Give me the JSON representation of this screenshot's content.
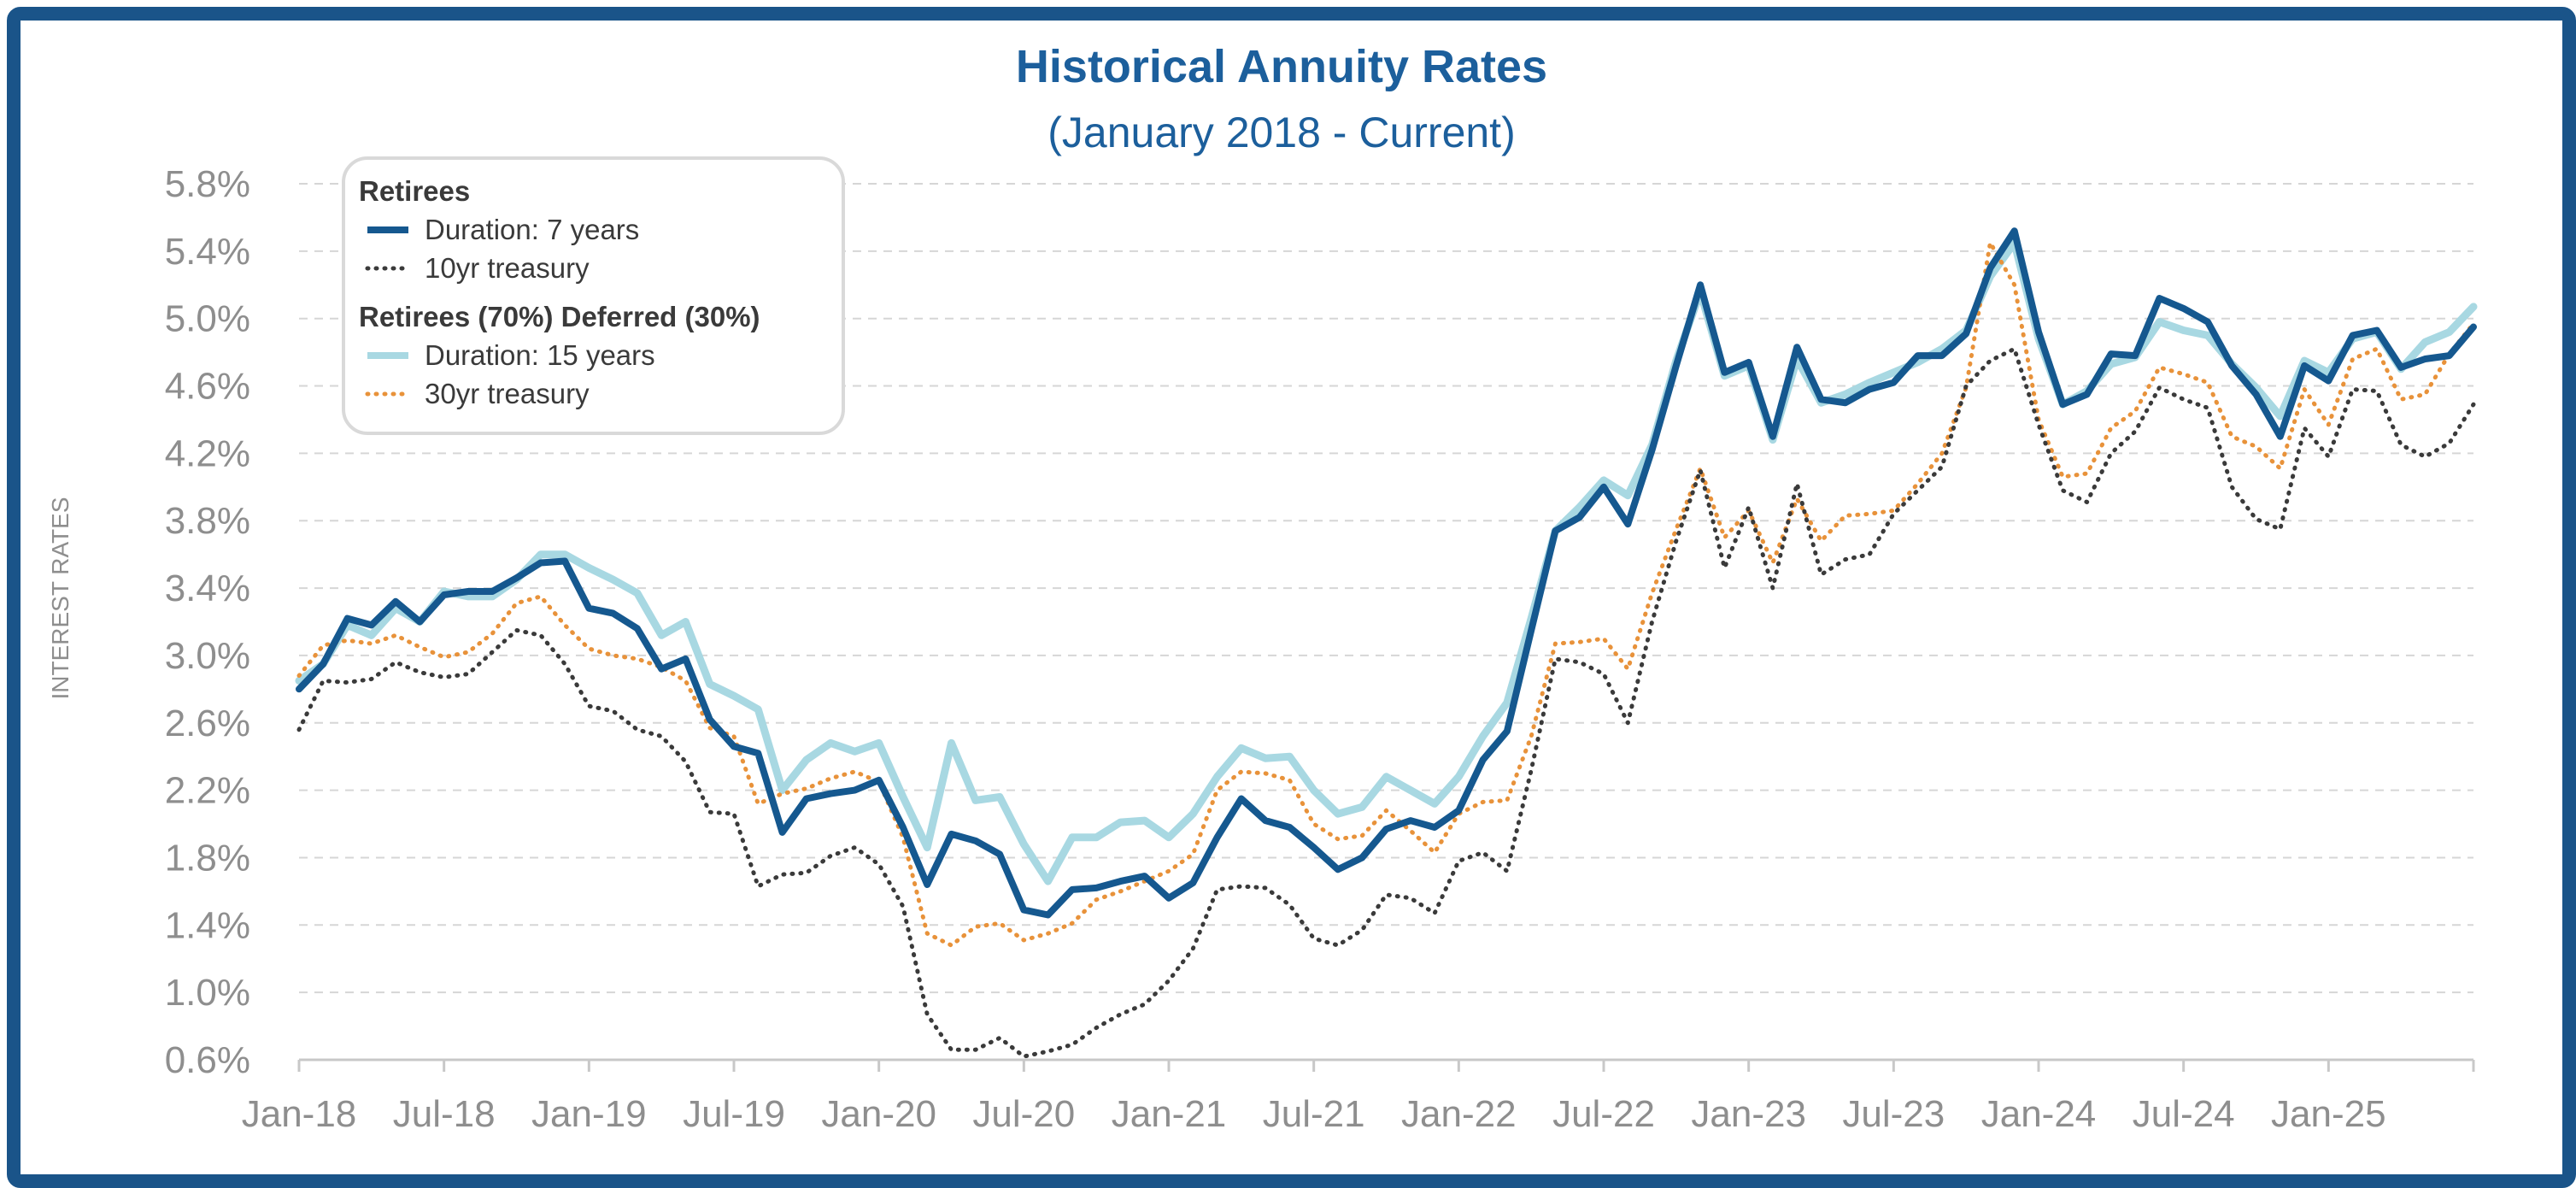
{
  "chart_data": {
    "type": "line",
    "title": "Historical Annuity Rates",
    "subtitle": "(January 2018 - Current)",
    "ylabel": "INTEREST RATES",
    "xlabel": "",
    "ylim": [
      0.6,
      5.8
    ],
    "grid": "horizontal dashed",
    "legend_position": "top-left",
    "x_tick_labels": [
      "Jan-18",
      "Jul-18",
      "Jan-19",
      "Jul-19",
      "Jan-20",
      "Jul-20",
      "Jan-21",
      "Jul-21",
      "Jan-22",
      "Jul-22",
      "Jan-23",
      "Jul-23",
      "Jan-24",
      "Jul-24",
      "Jan-25"
    ],
    "y_tick_labels": [
      "5.8%",
      "5.4%",
      "5.0%",
      "4.6%",
      "4.2%",
      "3.8%",
      "3.4%",
      "3.0%",
      "2.6%",
      "2.2%",
      "1.8%",
      "1.4%",
      "1.0%",
      "0.6%"
    ],
    "legend_groups": [
      {
        "heading": "Retirees",
        "entries": [
          0,
          1
        ]
      },
      {
        "heading": "Retirees (70%) Deferred (30%)",
        "entries": [
          2,
          3
        ]
      }
    ],
    "series": [
      {
        "name": "Duration: 7 years",
        "color": "#15588f",
        "style": "solid",
        "values": [
          2.8,
          2.95,
          3.22,
          3.18,
          3.32,
          3.2,
          3.36,
          3.38,
          3.38,
          3.46,
          3.55,
          3.56,
          3.28,
          3.25,
          3.16,
          2.92,
          2.98,
          2.62,
          2.46,
          2.42,
          1.95,
          2.15,
          2.18,
          2.2,
          2.26,
          1.98,
          1.64,
          1.94,
          1.9,
          1.82,
          1.49,
          1.46,
          1.61,
          1.62,
          1.66,
          1.69,
          1.56,
          1.65,
          1.92,
          2.15,
          2.02,
          1.98,
          1.86,
          1.73,
          1.8,
          1.97,
          2.02,
          1.98,
          2.08,
          2.38,
          2.55,
          3.15,
          3.74,
          3.82,
          4.0,
          3.78,
          4.22,
          4.72,
          5.2,
          4.68,
          4.74,
          4.3,
          4.83,
          4.52,
          4.5,
          4.58,
          4.62,
          4.78,
          4.78,
          4.91,
          5.3,
          5.52,
          4.92,
          4.49,
          4.55,
          4.79,
          4.78,
          5.12,
          5.06,
          4.98,
          4.72,
          4.55,
          4.3,
          4.72,
          4.63,
          4.9,
          4.93,
          4.71,
          4.76,
          4.78,
          4.95
        ]
      },
      {
        "name": "10yr treasury",
        "color": "#3a3a3a",
        "style": "dotted",
        "values": [
          2.56,
          2.85,
          2.84,
          2.86,
          2.96,
          2.9,
          2.87,
          2.89,
          3.02,
          3.15,
          3.12,
          2.95,
          2.7,
          2.67,
          2.56,
          2.52,
          2.37,
          2.07,
          2.06,
          1.63,
          1.7,
          1.71,
          1.81,
          1.86,
          1.76,
          1.51,
          0.87,
          0.66,
          0.66,
          0.73,
          0.62,
          0.65,
          0.69,
          0.79,
          0.87,
          0.93,
          1.07,
          1.26,
          1.61,
          1.63,
          1.62,
          1.52,
          1.32,
          1.28,
          1.37,
          1.58,
          1.56,
          1.47,
          1.78,
          1.83,
          1.72,
          2.32,
          2.98,
          2.96,
          2.89,
          2.6,
          3.2,
          3.68,
          4.1,
          3.52,
          3.88,
          3.4,
          4.02,
          3.48,
          3.57,
          3.6,
          3.84,
          3.98,
          4.12,
          4.6,
          4.75,
          4.82,
          4.37,
          3.98,
          3.91,
          4.2,
          4.33,
          4.59,
          4.52,
          4.47,
          4.0,
          3.81,
          3.75,
          4.35,
          4.18,
          4.58,
          4.57,
          4.25,
          4.18,
          4.26,
          4.49
        ]
      },
      {
        "name": "Duration: 15 years",
        "color": "#a8d8e2",
        "style": "solid",
        "values": [
          2.85,
          2.95,
          3.18,
          3.12,
          3.28,
          3.2,
          3.38,
          3.35,
          3.35,
          3.45,
          3.6,
          3.6,
          3.52,
          3.45,
          3.37,
          3.12,
          3.2,
          2.83,
          2.76,
          2.68,
          2.2,
          2.38,
          2.48,
          2.43,
          2.48,
          2.16,
          1.86,
          2.48,
          2.14,
          2.16,
          1.88,
          1.66,
          1.92,
          1.92,
          2.01,
          2.02,
          1.92,
          2.06,
          2.28,
          2.45,
          2.39,
          2.4,
          2.2,
          2.06,
          2.1,
          2.28,
          2.2,
          2.12,
          2.28,
          2.52,
          2.72,
          3.22,
          3.74,
          3.88,
          4.04,
          3.95,
          4.25,
          4.75,
          5.16,
          4.66,
          4.72,
          4.28,
          4.76,
          4.5,
          4.55,
          4.62,
          4.68,
          4.74,
          4.82,
          4.93,
          5.25,
          5.45,
          4.88,
          4.49,
          4.57,
          4.73,
          4.77,
          4.98,
          4.93,
          4.9,
          4.73,
          4.59,
          4.42,
          4.75,
          4.68,
          4.88,
          4.92,
          4.7,
          4.86,
          4.92,
          5.07
        ]
      },
      {
        "name": "30yr treasury",
        "color": "#e8923a",
        "style": "dotted",
        "values": [
          2.88,
          3.06,
          3.09,
          3.07,
          3.12,
          3.05,
          2.99,
          3.02,
          3.13,
          3.31,
          3.35,
          3.18,
          3.04,
          3.0,
          2.98,
          2.93,
          2.85,
          2.57,
          2.52,
          2.12,
          2.18,
          2.21,
          2.27,
          2.31,
          2.25,
          1.92,
          1.35,
          1.28,
          1.39,
          1.41,
          1.31,
          1.35,
          1.41,
          1.55,
          1.6,
          1.66,
          1.72,
          1.82,
          2.2,
          2.31,
          2.3,
          2.26,
          2.0,
          1.91,
          1.93,
          2.08,
          1.96,
          1.83,
          2.06,
          2.13,
          2.14,
          2.52,
          3.07,
          3.08,
          3.1,
          2.92,
          3.37,
          3.75,
          4.11,
          3.7,
          3.86,
          3.55,
          3.93,
          3.68,
          3.83,
          3.84,
          3.86,
          4.02,
          4.2,
          4.59,
          5.45,
          5.2,
          4.4,
          4.06,
          4.08,
          4.35,
          4.45,
          4.71,
          4.67,
          4.62,
          4.3,
          4.24,
          4.11,
          4.58,
          4.37,
          4.76,
          4.82,
          4.52,
          4.55,
          4.79,
          4.97
        ]
      }
    ]
  }
}
